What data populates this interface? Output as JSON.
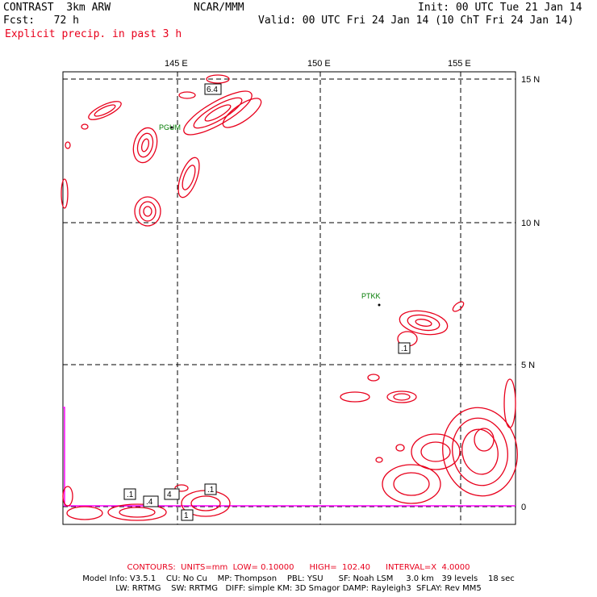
{
  "header": {
    "model": "CONTRAST  3km ARW",
    "org": "NCAR/MMM",
    "init": "Init: 00 UTC Tue 21 Jan 14",
    "fcst": "Fcst:   72 h",
    "valid": "Valid: 00 UTC Fri 24 Jan 14 (10 ChT Fri 24 Jan 14)",
    "field": "Explicit precip. in past 3 h"
  },
  "map": {
    "lon_labels": [
      "145 E",
      "150 E",
      "155 E"
    ],
    "lat_labels": [
      "15 N",
      "10 N",
      "5 N",
      "0"
    ],
    "stations": [
      "PGUM",
      "PTKK"
    ],
    "contour_labels": [
      "6.4",
      ".1",
      ".4",
      "4",
      ".1",
      "1",
      ".1"
    ],
    "colors": {
      "precip": "#e8001c",
      "station": "#007a00",
      "boundary": "#ff00ff",
      "grid": "#000000"
    }
  },
  "footer": {
    "contours": "CONTOURS:  UNITS=mm  LOW= 0.10000      HIGH=  102.40      INTERVAL=X  4.0000",
    "model_info_1": "Model Info: V3.5.1    CU: No Cu    MP: Thompson    PBL: YSU      SF: Noah LSM     3.0 km   39 levels    18 sec",
    "model_info_2": "LW: RRTMG    SW: RRTMG   DIFF: simple KM: 3D Smagor DAMP: Rayleigh3  SFLAY: Rev MM5"
  }
}
